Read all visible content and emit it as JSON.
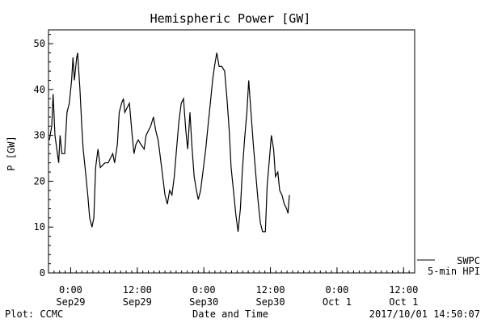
{
  "chart_data": {
    "type": "line",
    "title": "Hemispheric Power [GW]",
    "xlabel": "Date and Time",
    "ylabel": "P [GW]",
    "ylim": [
      0,
      53
    ],
    "xlim": [
      "2017-09-28 20:00",
      "2017-10-01 14:00"
    ],
    "yticks": [
      0,
      10,
      20,
      30,
      40,
      50
    ],
    "xticks": [
      {
        "x": "2017-09-29 00:00",
        "time": "0:00",
        "date": "Sep29"
      },
      {
        "x": "2017-09-29 12:00",
        "time": "12:00",
        "date": "Sep29"
      },
      {
        "x": "2017-09-30 00:00",
        "time": "0:00",
        "date": "Sep30"
      },
      {
        "x": "2017-09-30 12:00",
        "time": "12:00",
        "date": "Sep30"
      },
      {
        "x": "2017-10-01 00:00",
        "time": "0:00",
        "date": "Oct 1"
      },
      {
        "x": "2017-10-01 12:00",
        "time": "12:00",
        "date": "Oct 1"
      }
    ],
    "grid": false,
    "legend": {
      "placement": "right",
      "entries": [
        "SWPC",
        "5-min HPI"
      ]
    },
    "series": [
      {
        "name": "SWPC",
        "points": [
          [
            "2017-09-28 20:10",
            29
          ],
          [
            "2017-09-28 20:35",
            32
          ],
          [
            "2017-09-28 20:50",
            39
          ],
          [
            "2017-09-28 21:10",
            30
          ],
          [
            "2017-09-28 21:50",
            24
          ],
          [
            "2017-09-28 22:05",
            30
          ],
          [
            "2017-09-28 22:25",
            26
          ],
          [
            "2017-09-28 22:55",
            26
          ],
          [
            "2017-09-28 23:20",
            35
          ],
          [
            "2017-09-28 23:45",
            37
          ],
          [
            "2017-09-29 00:10",
            42
          ],
          [
            "2017-09-29 00:25",
            47
          ],
          [
            "2017-09-29 00:40",
            42
          ],
          [
            "2017-09-29 01:05",
            47
          ],
          [
            "2017-09-29 01:15",
            48
          ],
          [
            "2017-09-29 01:40",
            40
          ],
          [
            "2017-09-29 02:00",
            32
          ],
          [
            "2017-09-29 02:15",
            27
          ],
          [
            "2017-09-29 02:40",
            22
          ],
          [
            "2017-09-29 03:05",
            17
          ],
          [
            "2017-09-29 03:25",
            12
          ],
          [
            "2017-09-29 03:50",
            10
          ],
          [
            "2017-09-29 04:10",
            12
          ],
          [
            "2017-09-29 04:30",
            23
          ],
          [
            "2017-09-29 04:55",
            27
          ],
          [
            "2017-09-29 05:20",
            23
          ],
          [
            "2017-09-29 06:10",
            24
          ],
          [
            "2017-09-29 06:45",
            24
          ],
          [
            "2017-09-29 07:10",
            25
          ],
          [
            "2017-09-29 07:35",
            26
          ],
          [
            "2017-09-29 07:55",
            24
          ],
          [
            "2017-09-29 08:25",
            28
          ],
          [
            "2017-09-29 08:45",
            35
          ],
          [
            "2017-09-29 09:10",
            37
          ],
          [
            "2017-09-29 09:30",
            38
          ],
          [
            "2017-09-29 09:45",
            35
          ],
          [
            "2017-09-29 10:10",
            36
          ],
          [
            "2017-09-29 10:35",
            37
          ],
          [
            "2017-09-29 11:05",
            30
          ],
          [
            "2017-09-29 11:25",
            26
          ],
          [
            "2017-09-29 11:45",
            28
          ],
          [
            "2017-09-29 12:10",
            29
          ],
          [
            "2017-09-29 12:40",
            28
          ],
          [
            "2017-09-29 13:15",
            27
          ],
          [
            "2017-09-29 13:35",
            30
          ],
          [
            "2017-09-29 14:00",
            31
          ],
          [
            "2017-09-29 14:25",
            32
          ],
          [
            "2017-09-29 14:55",
            34
          ],
          [
            "2017-09-29 15:20",
            31
          ],
          [
            "2017-09-29 15:45",
            29
          ],
          [
            "2017-09-29 16:05",
            26
          ],
          [
            "2017-09-29 16:35",
            21
          ],
          [
            "2017-09-29 17:00",
            17
          ],
          [
            "2017-09-29 17:25",
            15
          ],
          [
            "2017-09-29 17:50",
            18
          ],
          [
            "2017-09-29 18:15",
            17
          ],
          [
            "2017-09-29 18:40",
            21
          ],
          [
            "2017-09-29 19:05",
            27
          ],
          [
            "2017-09-29 19:30",
            33
          ],
          [
            "2017-09-29 19:55",
            37
          ],
          [
            "2017-09-29 20:20",
            38
          ],
          [
            "2017-09-29 20:45",
            31
          ],
          [
            "2017-09-29 21:05",
            27
          ],
          [
            "2017-09-29 21:30",
            35
          ],
          [
            "2017-09-29 21:50",
            28
          ],
          [
            "2017-09-29 22:15",
            21
          ],
          [
            "2017-09-29 22:40",
            18
          ],
          [
            "2017-09-29 23:00",
            16
          ],
          [
            "2017-09-29 23:25",
            18
          ],
          [
            "2017-09-29 23:50",
            22
          ],
          [
            "2017-09-30 00:20",
            27
          ],
          [
            "2017-09-30 00:45",
            32
          ],
          [
            "2017-09-30 01:10",
            37
          ],
          [
            "2017-09-30 01:35",
            42
          ],
          [
            "2017-09-30 01:55",
            45
          ],
          [
            "2017-09-30 02:20",
            48
          ],
          [
            "2017-09-30 02:45",
            45
          ],
          [
            "2017-09-30 03:15",
            45
          ],
          [
            "2017-09-30 03:45",
            44
          ],
          [
            "2017-09-30 04:10",
            38
          ],
          [
            "2017-09-30 04:35",
            31
          ],
          [
            "2017-09-30 04:55",
            23
          ],
          [
            "2017-09-30 05:20",
            18
          ],
          [
            "2017-09-30 05:45",
            13
          ],
          [
            "2017-09-30 06:10",
            9
          ],
          [
            "2017-09-30 06:35",
            14
          ],
          [
            "2017-09-30 06:55",
            22
          ],
          [
            "2017-09-30 07:20",
            29
          ],
          [
            "2017-09-30 07:45",
            35
          ],
          [
            "2017-09-30 08:05",
            42
          ],
          [
            "2017-09-30 08:30",
            35
          ],
          [
            "2017-09-30 08:55",
            28
          ],
          [
            "2017-09-30 09:20",
            22
          ],
          [
            "2017-09-30 09:45",
            16
          ],
          [
            "2017-09-30 10:10",
            11
          ],
          [
            "2017-09-30 10:35",
            9
          ],
          [
            "2017-09-30 11:05",
            9
          ],
          [
            "2017-09-30 11:25",
            19
          ],
          [
            "2017-09-30 11:50",
            25
          ],
          [
            "2017-09-30 12:10",
            30
          ],
          [
            "2017-09-30 12:35",
            27
          ],
          [
            "2017-09-30 12:55",
            21
          ],
          [
            "2017-09-30 13:20",
            22
          ],
          [
            "2017-09-30 13:40",
            18
          ],
          [
            "2017-09-30 14:05",
            17
          ],
          [
            "2017-09-30 14:30",
            15
          ],
          [
            "2017-09-30 14:55",
            14
          ],
          [
            "2017-09-30 15:10",
            13
          ],
          [
            "2017-09-30 15:25",
            17
          ]
        ]
      }
    ]
  },
  "footer": {
    "plot_credit": "Plot: CCMC",
    "timestamp": "2017/10/01 14:50:07"
  },
  "colors": {
    "line": "#000000",
    "axes": "#000000",
    "background": "#ffffff"
  }
}
